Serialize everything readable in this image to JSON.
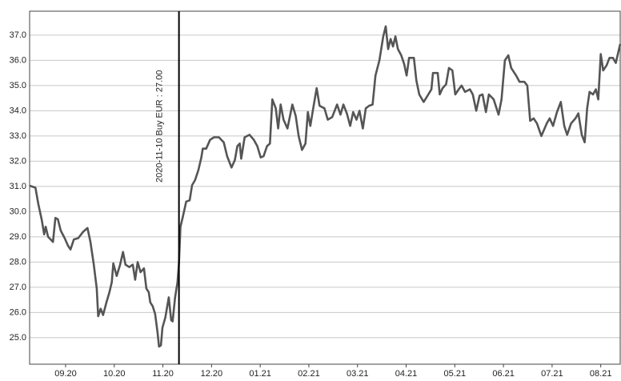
{
  "chart_data": {
    "type": "line",
    "color": "#555555",
    "grid": true,
    "x": [
      0.26,
      0.38,
      0.44,
      0.51,
      0.56,
      0.59,
      0.64,
      0.74,
      0.79,
      0.84,
      0.9,
      0.98,
      1.05,
      1.1,
      1.17,
      1.26,
      1.36,
      1.45,
      1.51,
      1.58,
      1.64,
      1.67,
      1.72,
      1.77,
      1.84,
      1.9,
      1.95,
      1.98,
      2.05,
      2.12,
      2.18,
      2.23,
      2.31,
      2.38,
      2.43,
      2.48,
      2.54,
      2.61,
      2.66,
      2.71,
      2.74,
      2.79,
      2.84,
      2.89,
      2.92,
      2.96,
      2.99,
      3.05,
      3.12,
      3.17,
      3.2,
      3.25,
      3.3,
      3.33,
      3.36,
      3.41,
      3.48,
      3.55,
      3.6,
      3.66,
      3.73,
      3.79,
      3.82,
      3.89,
      3.97,
      4.05,
      4.15,
      4.25,
      4.32,
      4.41,
      4.48,
      4.53,
      4.58,
      4.61,
      4.68,
      4.78,
      4.87,
      4.94,
      5.01,
      5.07,
      5.14,
      5.2,
      5.25,
      5.32,
      5.37,
      5.42,
      5.48,
      5.56,
      5.66,
      5.73,
      5.79,
      5.86,
      5.93,
      5.98,
      6.03,
      6.09,
      6.16,
      6.22,
      6.32,
      6.39,
      6.48,
      6.58,
      6.65,
      6.71,
      6.78,
      6.85,
      6.91,
      6.98,
      7.04,
      7.11,
      7.17,
      7.24,
      7.31,
      7.37,
      7.45,
      7.53,
      7.58,
      7.63,
      7.68,
      7.73,
      7.78,
      7.83,
      7.9,
      7.96,
      8.01,
      8.06,
      8.16,
      8.21,
      8.27,
      8.36,
      8.44,
      8.52,
      8.55,
      8.65,
      8.69,
      8.75,
      8.82,
      8.88,
      8.95,
      9.01,
      9.08,
      9.14,
      9.21,
      9.31,
      9.37,
      9.44,
      9.51,
      9.57,
      9.64,
      9.7,
      9.8,
      9.9,
      9.96,
      10.03,
      10.1,
      10.16,
      10.26,
      10.33,
      10.43,
      10.49,
      10.55,
      10.62,
      10.69,
      10.78,
      10.89,
      10.95,
      11.02,
      11.1,
      11.18,
      11.25,
      11.31,
      11.39,
      11.48,
      11.54,
      11.61,
      11.67,
      11.72,
      11.77,
      11.84,
      11.9,
      11.95,
      12.0,
      12.05,
      12.12,
      12.18,
      12.25,
      12.31,
      12.4
    ],
    "values": [
      31.03,
      30.95,
      30.3,
      29.67,
      29.1,
      29.4,
      29.0,
      28.8,
      29.75,
      29.7,
      29.25,
      28.95,
      28.65,
      28.5,
      28.9,
      28.95,
      29.2,
      29.35,
      28.8,
      27.9,
      26.95,
      25.85,
      26.15,
      25.9,
      26.4,
      26.8,
      27.2,
      27.95,
      27.45,
      27.9,
      28.4,
      27.9,
      27.8,
      27.9,
      27.3,
      28.0,
      27.6,
      27.75,
      26.95,
      26.8,
      26.4,
      26.25,
      25.95,
      25.2,
      24.65,
      24.7,
      25.4,
      25.8,
      26.6,
      25.7,
      25.65,
      26.6,
      27.2,
      27.95,
      29.4,
      29.8,
      30.4,
      30.45,
      31.05,
      31.25,
      31.65,
      32.15,
      32.5,
      32.5,
      32.85,
      32.95,
      32.95,
      32.75,
      32.2,
      31.75,
      32.05,
      32.6,
      32.7,
      32.1,
      32.95,
      33.05,
      32.85,
      32.6,
      32.15,
      32.2,
      32.6,
      32.7,
      34.45,
      34.1,
      33.3,
      34.25,
      33.65,
      33.3,
      34.25,
      33.8,
      33.0,
      32.45,
      32.7,
      33.95,
      33.4,
      34.1,
      34.9,
      34.2,
      34.1,
      33.65,
      33.75,
      34.25,
      33.85,
      34.25,
      33.9,
      33.4,
      33.95,
      33.65,
      34.0,
      33.3,
      34.1,
      34.2,
      34.25,
      35.4,
      36.0,
      36.95,
      37.35,
      36.45,
      36.85,
      36.55,
      36.95,
      36.45,
      36.2,
      35.85,
      35.4,
      36.1,
      36.1,
      35.2,
      34.65,
      34.35,
      34.6,
      34.85,
      35.5,
      35.5,
      34.65,
      34.9,
      35.05,
      35.7,
      35.6,
      34.65,
      34.85,
      35.0,
      34.75,
      34.85,
      34.65,
      34.0,
      34.6,
      34.65,
      33.95,
      34.65,
      34.45,
      33.85,
      34.45,
      36.0,
      36.2,
      35.7,
      35.4,
      35.15,
      35.15,
      35.0,
      33.6,
      33.7,
      33.5,
      33.0,
      33.5,
      33.7,
      33.4,
      33.95,
      34.35,
      33.4,
      33.05,
      33.5,
      33.7,
      33.9,
      33.05,
      32.75,
      34.1,
      34.75,
      34.65,
      34.85,
      34.45,
      36.25,
      35.6,
      35.8,
      36.1,
      36.1,
      35.9,
      36.65
    ],
    "xlim": [
      0.26,
      12.4
    ],
    "xticks": [
      {
        "value": 1,
        "label": "09.20"
      },
      {
        "value": 2,
        "label": "10.20"
      },
      {
        "value": 3,
        "label": "11.20"
      },
      {
        "value": 4,
        "label": "12.20"
      },
      {
        "value": 5,
        "label": "01.21"
      },
      {
        "value": 6,
        "label": "02.21"
      },
      {
        "value": 7,
        "label": "03.21"
      },
      {
        "value": 8,
        "label": "04.21"
      },
      {
        "value": 9,
        "label": "05.21"
      },
      {
        "value": 10,
        "label": "06.21"
      },
      {
        "value": 11,
        "label": "07.21"
      },
      {
        "value": 12,
        "label": "08.21"
      }
    ],
    "ylim": [
      23.95,
      37.95
    ],
    "yticks": [
      {
        "value": 25,
        "label": "25.0"
      },
      {
        "value": 26,
        "label": "26.0"
      },
      {
        "value": 27,
        "label": "27.0"
      },
      {
        "value": 28,
        "label": "28.0"
      },
      {
        "value": 29,
        "label": "29.0"
      },
      {
        "value": 30,
        "label": "30.0"
      },
      {
        "value": 31,
        "label": "31.0"
      },
      {
        "value": 32,
        "label": "32.0"
      },
      {
        "value": 33,
        "label": "33.0"
      },
      {
        "value": 34,
        "label": "34.0"
      },
      {
        "value": 35,
        "label": "35.0"
      },
      {
        "value": 36,
        "label": "36.0"
      },
      {
        "value": 37,
        "label": "37.0"
      }
    ],
    "annotations": [
      {
        "x": 3.33,
        "text": "2020-11-10 Buy EUR : 27.00"
      }
    ]
  }
}
